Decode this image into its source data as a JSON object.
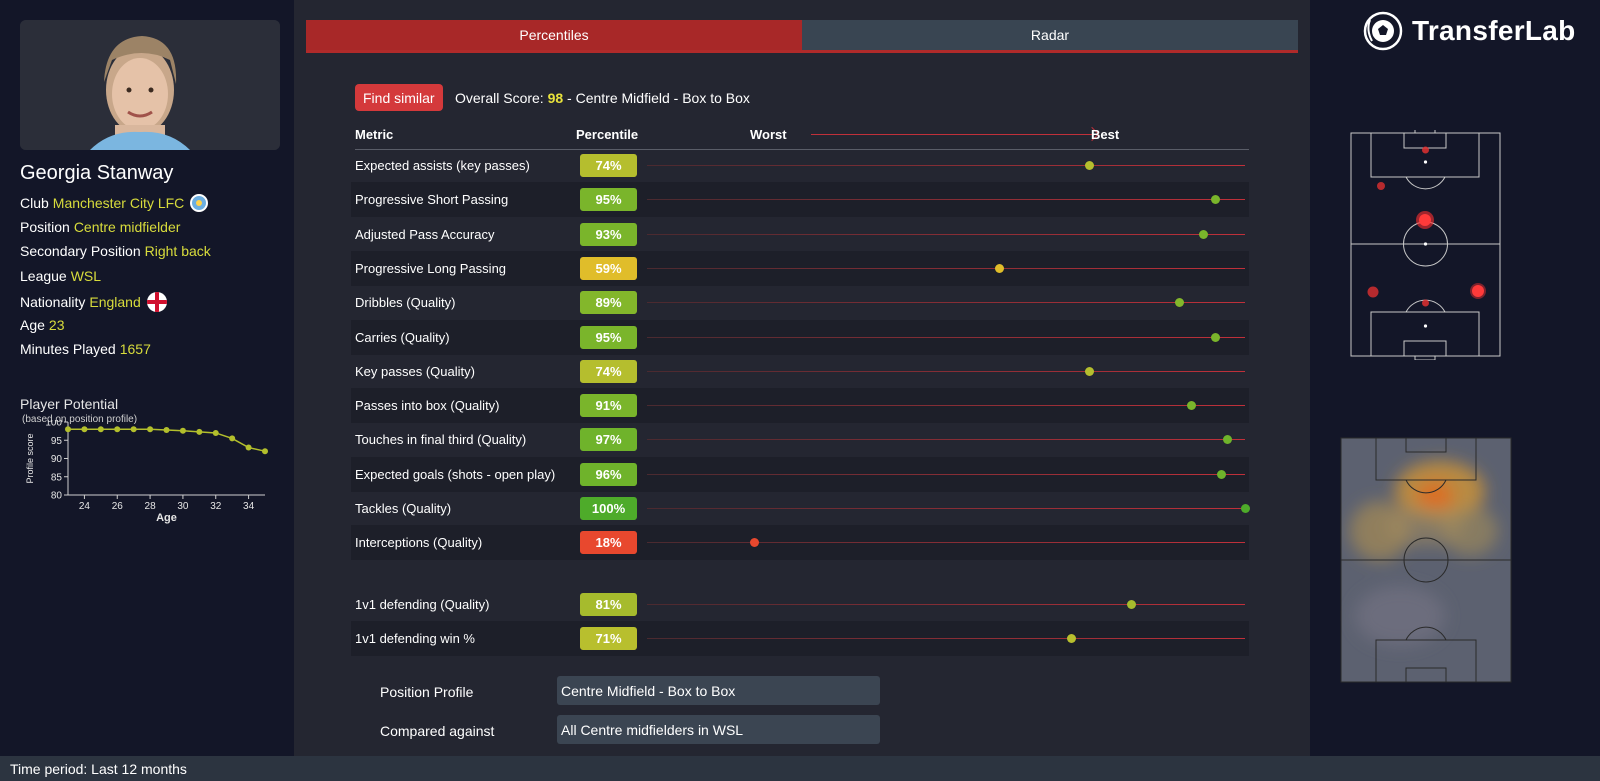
{
  "player": {
    "name": "Georgia Stanway",
    "info": [
      {
        "label": "Club",
        "value": "Manchester City LFC",
        "icon": "club-badge-icon"
      },
      {
        "label": "Position",
        "value": "Centre midfielder"
      },
      {
        "label": "Secondary Position",
        "value": "Right back"
      },
      {
        "label": "League",
        "value": "WSL"
      },
      {
        "label": "Nationality",
        "value": "England",
        "icon": "england-flag-icon"
      },
      {
        "label": "Age",
        "value": "23"
      },
      {
        "label": "Minutes Played",
        "value": "1657"
      }
    ]
  },
  "potential": {
    "title": "Player Potential",
    "subtitle": "(based on position profile)",
    "chart_data": {
      "type": "line",
      "xlabel": "Age",
      "ylabel": "Profile score",
      "ylim": [
        80,
        100
      ],
      "xlim": [
        23,
        35
      ],
      "x_ticks": [
        24,
        26,
        28,
        30,
        32,
        34
      ],
      "y_ticks": [
        80,
        85,
        90,
        95,
        100
      ],
      "x": [
        23,
        24,
        25,
        26,
        27,
        28,
        29,
        30,
        31,
        32,
        33,
        34,
        35
      ],
      "values": [
        98,
        98,
        98,
        98,
        98,
        98,
        97.8,
        97.6,
        97.3,
        97,
        95.5,
        93,
        92
      ],
      "color": "#b3bf2c"
    }
  },
  "tabs": [
    {
      "label": "Percentiles",
      "active": true
    },
    {
      "label": "Radar",
      "active": false
    }
  ],
  "find_similar_label": "Find similar",
  "overall": {
    "prefix": "Overall Score: ",
    "score": "98",
    "suffix": " - Centre Midfield - Box to Box"
  },
  "headers": {
    "metric": "Metric",
    "percentile": "Percentile",
    "worst": "Worst",
    "best": "Best"
  },
  "metrics": [
    {
      "label": "Expected assists (key passes)",
      "pct": 74,
      "text": "74%",
      "color": "#b5be2e"
    },
    {
      "label": "Progressive Short Passing",
      "pct": 95,
      "text": "95%",
      "color": "#7ab52b"
    },
    {
      "label": "Adjusted Pass Accuracy",
      "pct": 93,
      "text": "93%",
      "color": "#7ab52b"
    },
    {
      "label": "Progressive Long Passing",
      "pct": 59,
      "text": "59%",
      "color": "#e0bd2a"
    },
    {
      "label": "Dribbles (Quality)",
      "pct": 89,
      "text": "89%",
      "color": "#83b72b"
    },
    {
      "label": "Carries (Quality)",
      "pct": 95,
      "text": "95%",
      "color": "#7ab52b"
    },
    {
      "label": "Key passes (Quality)",
      "pct": 74,
      "text": "74%",
      "color": "#b5be2e"
    },
    {
      "label": "Passes into box (Quality)",
      "pct": 91,
      "text": "91%",
      "color": "#7ab52b"
    },
    {
      "label": "Touches in final third (Quality)",
      "pct": 97,
      "text": "97%",
      "color": "#6fb32b"
    },
    {
      "label": "Expected goals (shots - open play)",
      "pct": 96,
      "text": "96%",
      "color": "#6fb32b"
    },
    {
      "label": "Tackles (Quality)",
      "pct": 100,
      "text": "100%",
      "color": "#4eab2a"
    },
    {
      "label": "Interceptions (Quality)",
      "pct": 18,
      "text": "18%",
      "color": "#e8482e"
    }
  ],
  "metrics_extra": [
    {
      "label": "1v1 defending (Quality)",
      "pct": 81,
      "text": "81%",
      "color": "#a6bb2d"
    },
    {
      "label": "1v1 defending win %",
      "pct": 71,
      "text": "71%",
      "color": "#b8bf2e"
    }
  ],
  "selectors": [
    {
      "label": "Position Profile",
      "value": "Centre Midfield - Box to Box"
    },
    {
      "label": "Compared against",
      "value": "All Centre midfielders in WSL"
    }
  ],
  "brand": {
    "name": "TransferLab",
    "icon": "football-logo-icon"
  },
  "footer": "Time period: Last 12 months"
}
